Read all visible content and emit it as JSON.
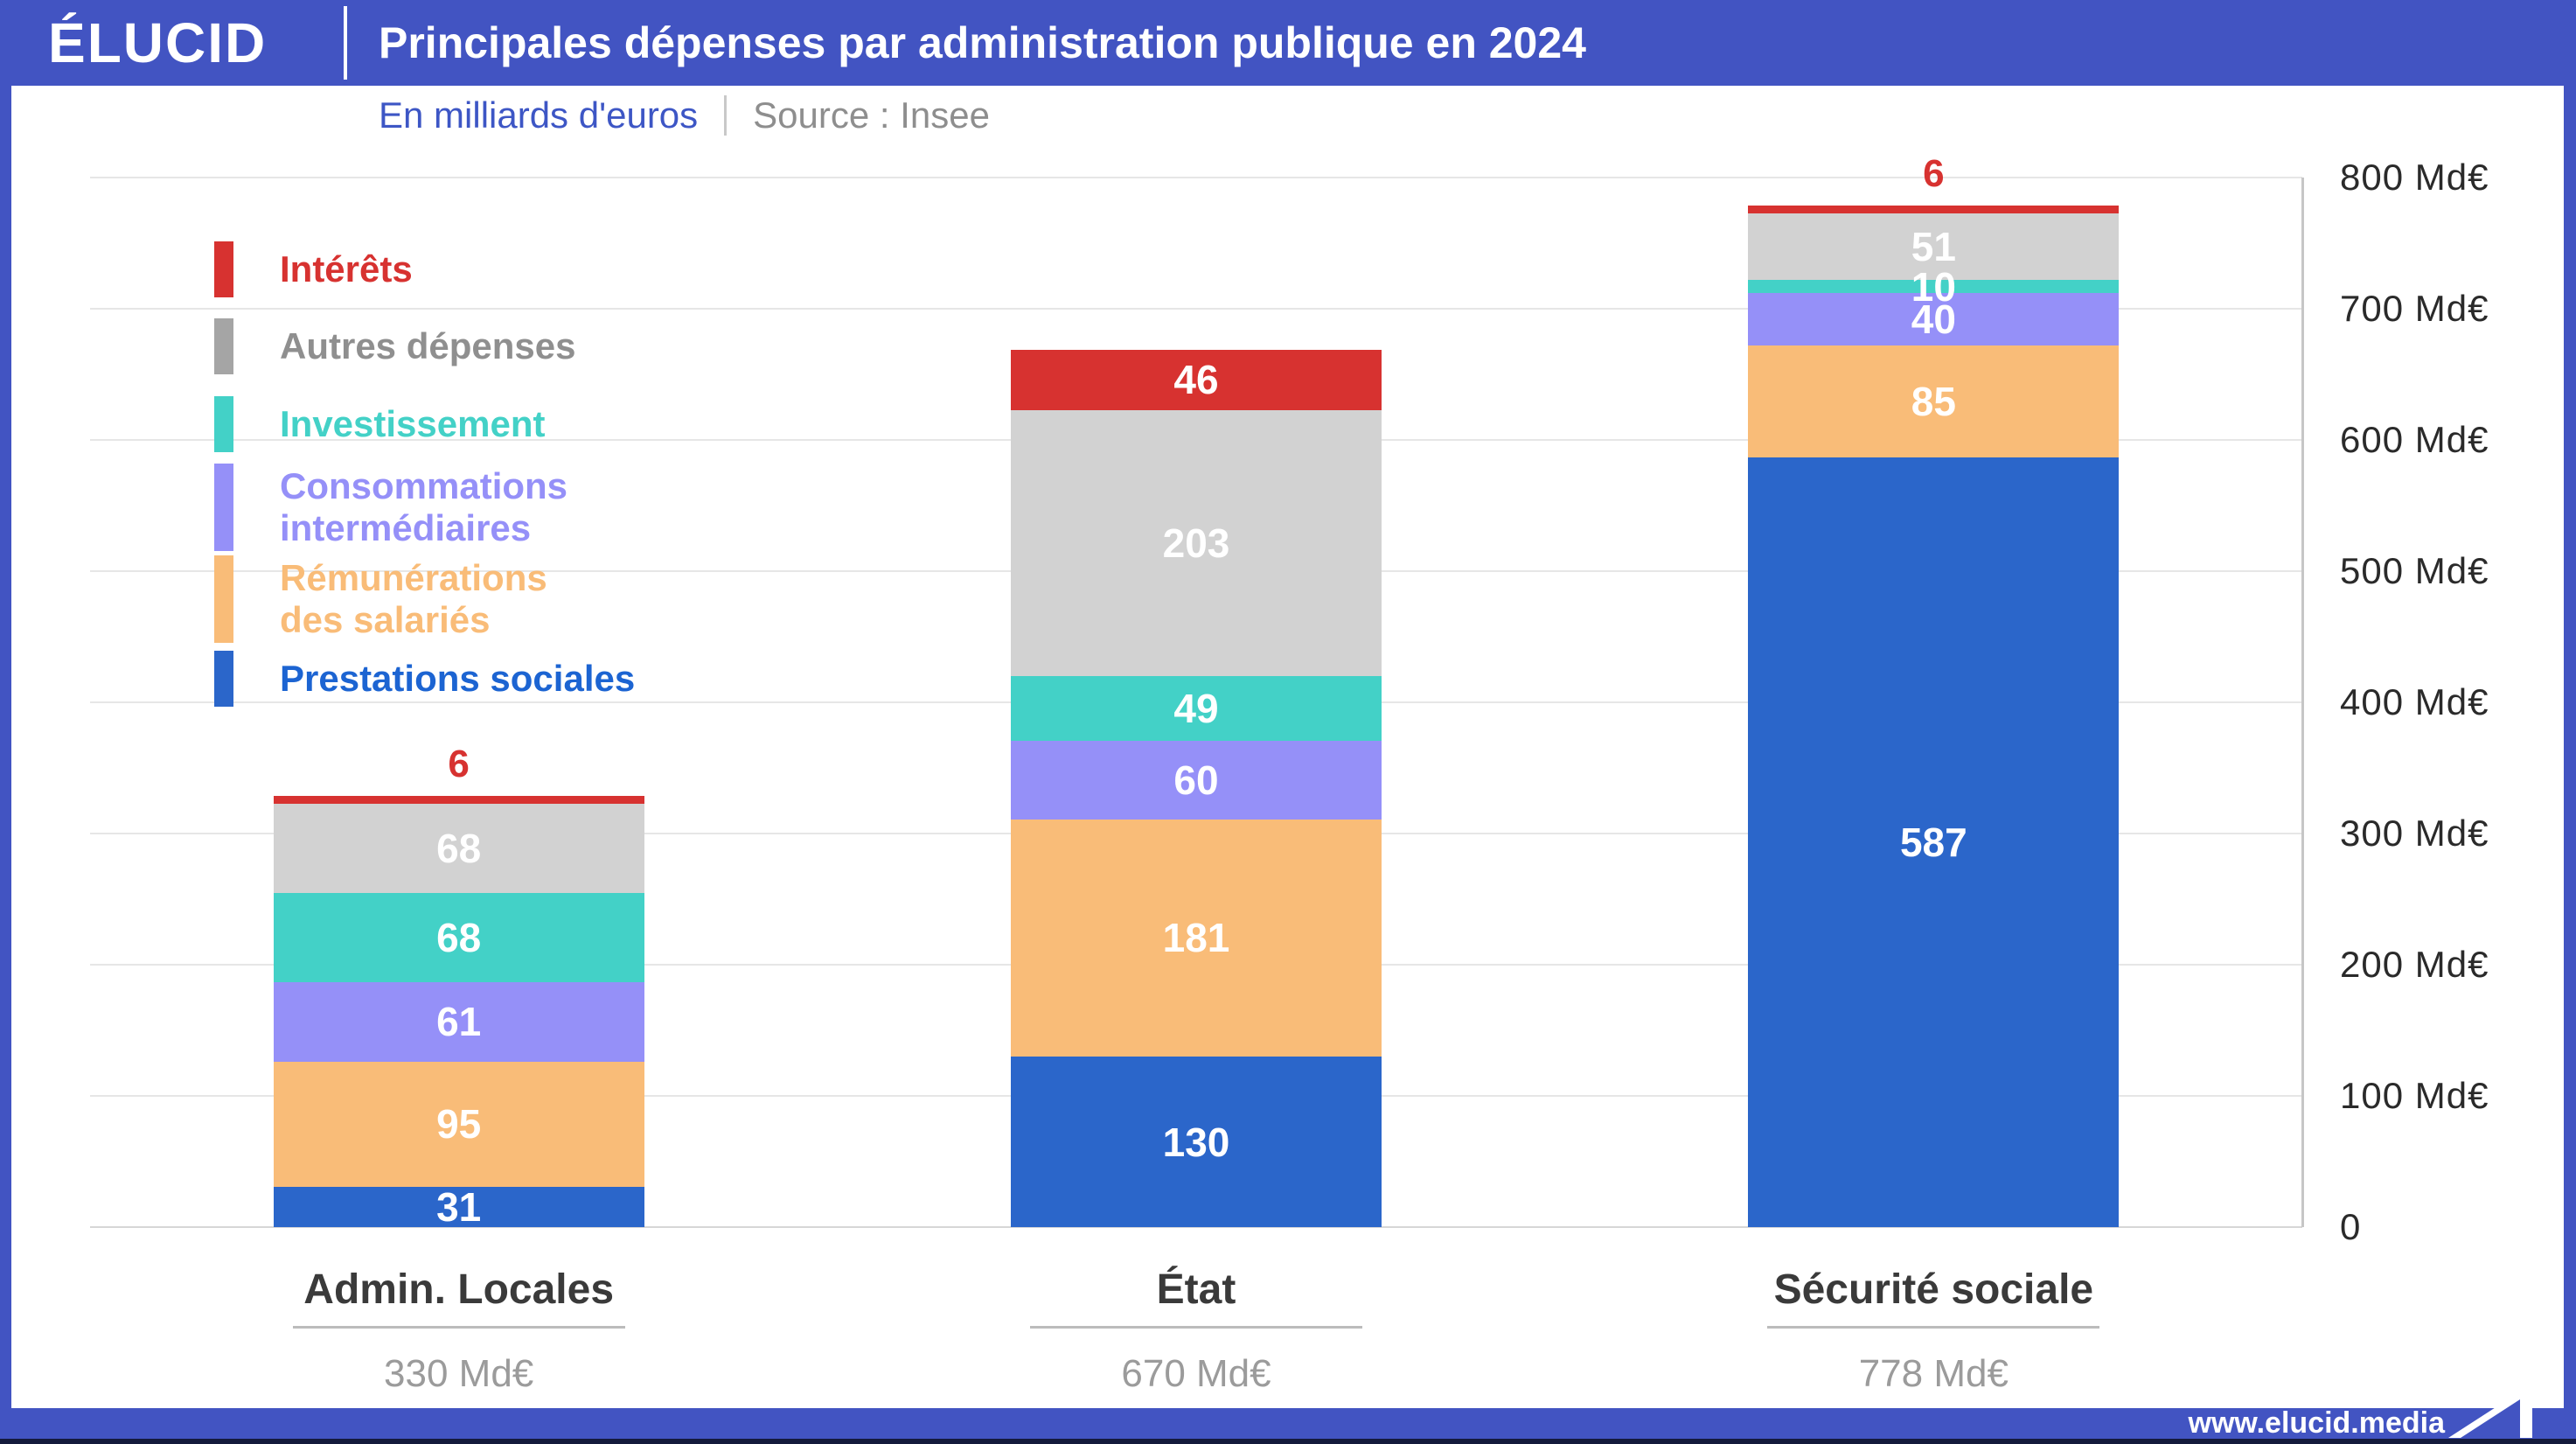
{
  "header": {
    "logo": "ÉLUCID",
    "title": "Principales dépenses par administration publique en 2024"
  },
  "subtitle": {
    "unit_label": "En milliards d'euros",
    "source_label": "Source : Insee"
  },
  "footer": {
    "url": "www.elucid.media"
  },
  "colors": {
    "brand_blue": "#4254c2",
    "interets": "#d73230",
    "autres": "#d2d2d2",
    "autres_swatch": "#a5a5a5",
    "autres_text": "#8f8f8f",
    "investissement": "#43d1c7",
    "consommations": "#9590f8",
    "remunerations": "#f9bc78",
    "prestations": "#2b66ca",
    "prestations_text": "#1c64d2"
  },
  "chart_data": {
    "type": "bar",
    "variant": "stacked-vertical",
    "unit": "Md€",
    "ylim": [
      0,
      800
    ],
    "grid": true,
    "legend_position": "upper-left",
    "yticks": [
      {
        "value": 0,
        "label": "0"
      },
      {
        "value": 100,
        "label": "100 Md€"
      },
      {
        "value": 200,
        "label": "200 Md€"
      },
      {
        "value": 300,
        "label": "300 Md€"
      },
      {
        "value": 400,
        "label": "400 Md€"
      },
      {
        "value": 500,
        "label": "500 Md€"
      },
      {
        "value": 600,
        "label": "600 Md€"
      },
      {
        "value": 700,
        "label": "700 Md€"
      },
      {
        "value": 800,
        "label": "800 Md€"
      }
    ],
    "series_stack_bottom_to_top": [
      {
        "id": "prestations",
        "color": "#2b66ca"
      },
      {
        "id": "remunerations",
        "color": "#f9bc78"
      },
      {
        "id": "consommations",
        "color": "#9590f8"
      },
      {
        "id": "investissement",
        "color": "#43d1c7"
      },
      {
        "id": "autres",
        "color": "#d2d2d2"
      },
      {
        "id": "interets",
        "color": "#d73230"
      }
    ],
    "legend": [
      {
        "id": "interets",
        "lines": [
          "Intérêts"
        ],
        "text_color": "#d73230",
        "swatch_color": "#d73230"
      },
      {
        "id": "autres",
        "lines": [
          "Autres dépenses"
        ],
        "text_color": "#8f8f8f",
        "swatch_color": "#a5a5a5"
      },
      {
        "id": "investissement",
        "lines": [
          "Investissement"
        ],
        "text_color": "#43d1c7",
        "swatch_color": "#43d1c7"
      },
      {
        "id": "consommations",
        "lines": [
          "Consommations",
          "intermédiaires"
        ],
        "text_color": "#9590f8",
        "swatch_color": "#9590f8"
      },
      {
        "id": "remunerations",
        "lines": [
          "Rémunérations",
          "des salariés"
        ],
        "text_color": "#f9bc78",
        "swatch_color": "#f9bc78"
      },
      {
        "id": "prestations",
        "lines": [
          "Prestations sociales"
        ],
        "text_color": "#1c64d2",
        "swatch_color": "#2b66ca"
      }
    ],
    "categories": [
      {
        "label": "Admin. Locales",
        "total_label": "330 Md€",
        "values": {
          "prestations": 31,
          "remunerations": 95,
          "consommations": 61,
          "investissement": 68,
          "autres": 68,
          "interets": 6
        }
      },
      {
        "label": "État",
        "total_label": "670 Md€",
        "values": {
          "prestations": 130,
          "remunerations": 181,
          "consommations": 60,
          "investissement": 49,
          "autres": 203,
          "interets": 46
        }
      },
      {
        "label": "Sécurité sociale",
        "total_label": "778 Md€",
        "values": {
          "prestations": 587,
          "remunerations": 85,
          "consommations": 40,
          "investissement": 10,
          "autres": 51,
          "interets": 6
        }
      }
    ]
  }
}
